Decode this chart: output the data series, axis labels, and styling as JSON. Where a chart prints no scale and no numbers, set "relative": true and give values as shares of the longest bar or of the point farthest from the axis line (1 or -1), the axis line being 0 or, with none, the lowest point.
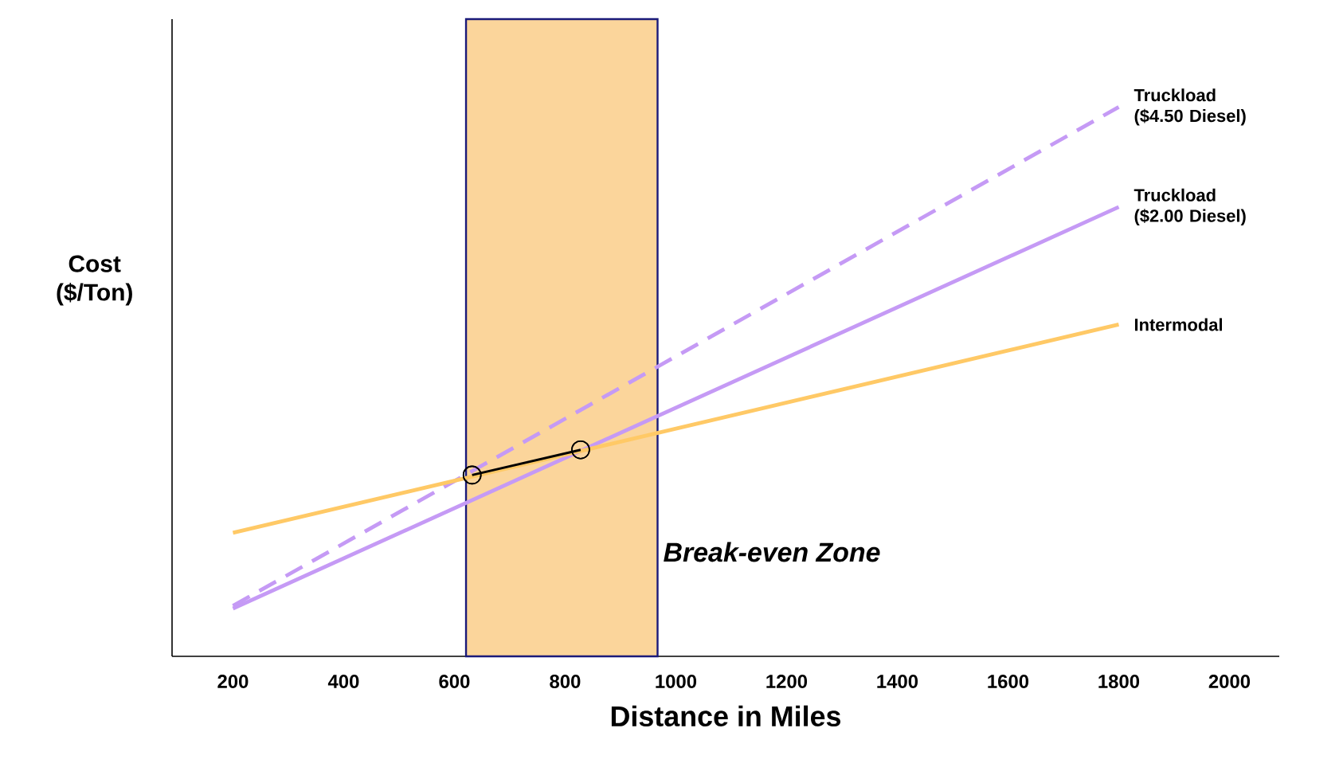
{
  "chart_data": {
    "type": "line",
    "relative": true,
    "xlabel": "Distance in Miles",
    "ylabel": "Cost ($/Ton)",
    "xlim": [
      90,
      2090
    ],
    "xticks": [
      200,
      400,
      600,
      800,
      1000,
      1200,
      1400,
      1600,
      1800,
      2000
    ],
    "grid": false,
    "series": [
      {
        "name": "Truckload ($4.50 Diesel)",
        "color": "#c59af5",
        "line_style": "dashed",
        "x": [
          200,
          1800
        ],
        "values": [
          0.092,
          1
        ]
      },
      {
        "name": "Truckload ($2.00 Diesel)",
        "color": "#c59af5",
        "line_style": "solid",
        "x": [
          200,
          1800
        ],
        "values": [
          0.087,
          0.818
        ]
      },
      {
        "name": "Intermodal",
        "color": "#ffc966",
        "line_style": "solid",
        "x": [
          200,
          1800
        ],
        "values": [
          0.225,
          0.604
        ]
      },
      {
        "color": "#000000",
        "marker": "circle",
        "x": [
          828,
          632
        ],
        "values": [
          0.376,
          0.33
        ]
      }
    ],
    "bands": [
      {
        "axis": "x",
        "from": 621,
        "to": 967,
        "label": "Break-even Zone",
        "color": "#fbd59b"
      }
    ]
  }
}
